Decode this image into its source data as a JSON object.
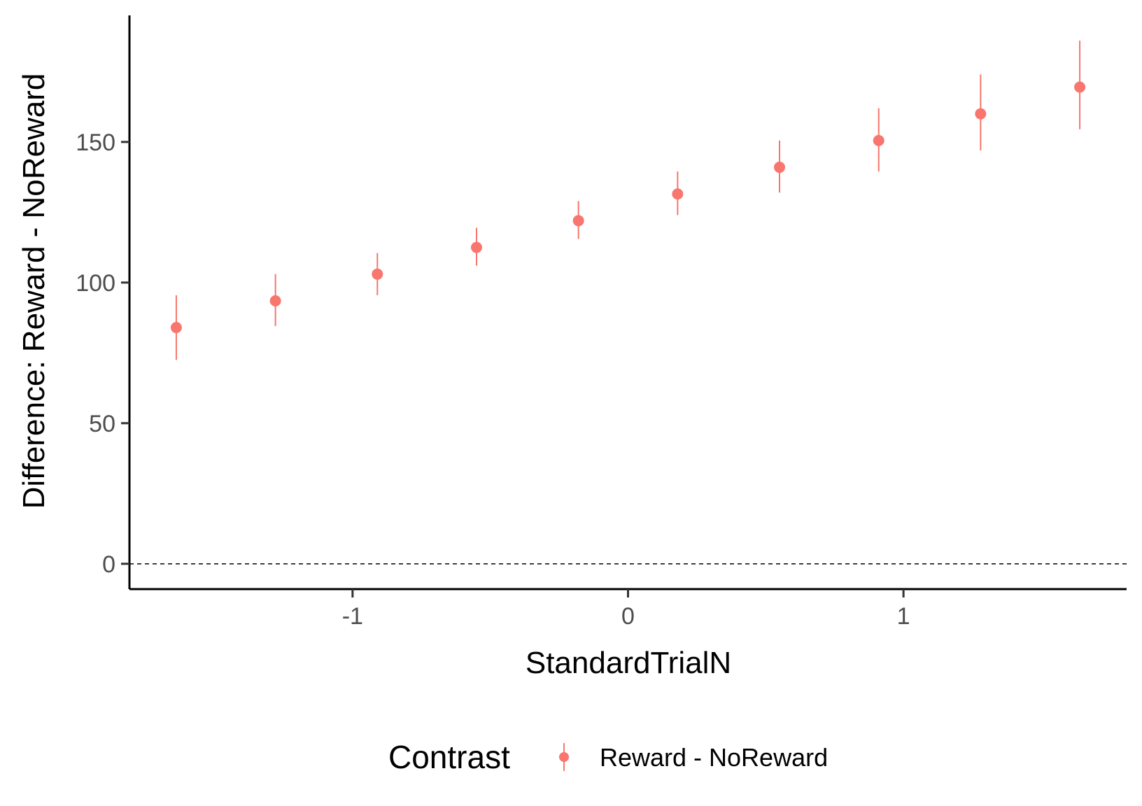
{
  "chart_data": {
    "type": "scatter",
    "title": "",
    "xlabel": "StandardTrialN",
    "ylabel": "Difference: Reward - NoReward",
    "xlim": [
      -1.81,
      1.81
    ],
    "ylim": [
      -9,
      195
    ],
    "x_ticks": [
      -1,
      0,
      1
    ],
    "x_tick_labels": [
      "-1",
      "0",
      "1"
    ],
    "y_ticks": [
      0,
      50,
      100,
      150
    ],
    "y_tick_labels": [
      "0",
      "50",
      "100",
      "150"
    ],
    "grid": false,
    "reference_line": {
      "y": 0,
      "style": "dashed"
    },
    "legend": {
      "title": "Contrast",
      "position": "bottom"
    },
    "series": [
      {
        "name": "Reward - NoReward",
        "color": "#F8766D",
        "x": [
          -1.64,
          -1.28,
          -0.91,
          -0.55,
          -0.18,
          0.18,
          0.55,
          0.91,
          1.28,
          1.64
        ],
        "y": [
          84,
          93.5,
          103,
          112.5,
          122,
          131.5,
          141,
          150.5,
          160,
          169.5
        ],
        "lower": [
          72.5,
          84.5,
          95.5,
          106,
          115.5,
          124,
          132,
          139.5,
          147,
          154.5
        ],
        "upper": [
          95.5,
          103,
          110.5,
          119.5,
          129,
          139.5,
          150.5,
          162,
          174,
          186
        ]
      }
    ]
  }
}
